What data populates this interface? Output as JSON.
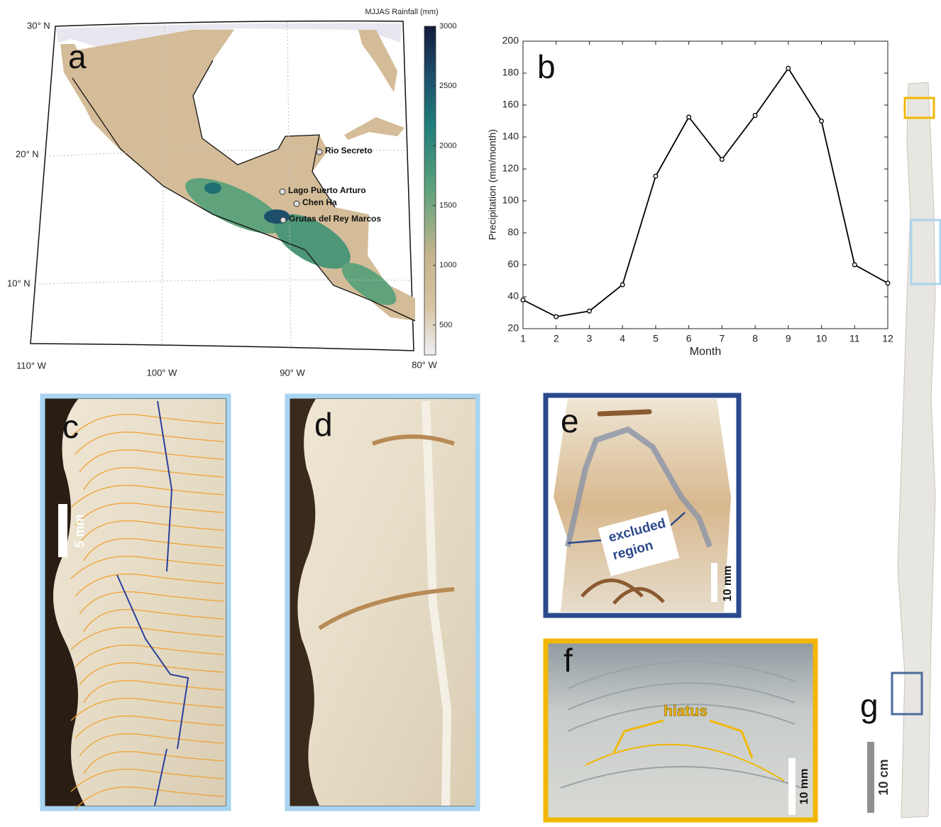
{
  "chart_data": {
    "type": "line",
    "panel_label": "b",
    "xlabel": "Month",
    "ylabel": "Precipitation (mm/month)",
    "x": [
      1,
      2,
      3,
      4,
      5,
      6,
      7,
      8,
      9,
      10,
      11,
      12
    ],
    "series": [
      {
        "color": "#000000",
        "values": [
          38,
          27.5,
          31,
          47.5,
          115.5,
          152.5,
          126,
          153.5,
          183,
          150,
          60,
          48.5
        ]
      }
    ],
    "xlim": [
      1,
      12
    ],
    "ylim": [
      20,
      200
    ],
    "xticks": [
      1,
      2,
      3,
      4,
      5,
      6,
      7,
      8,
      9,
      10,
      11,
      12
    ],
    "yticks": [
      20,
      40,
      60,
      80,
      100,
      120,
      140,
      160,
      180,
      200
    ]
  },
  "map": {
    "panel_label": "a",
    "colorbar_title": "MJJAS Rainfall (mm)",
    "colorbar_lim": [
      250,
      3000
    ],
    "colorbar_ticks": [
      500,
      1000,
      1500,
      2000,
      2500,
      3000
    ],
    "lat_labels": [
      "30° N",
      "20° N",
      "10° N"
    ],
    "lon_labels": [
      "110° W",
      "100° W",
      "90° W",
      "80° W"
    ],
    "sites": [
      "Rio Secreto",
      "Lago Puerto Arturo",
      "Chen Ha",
      "Grutas del Rey Marcos"
    ]
  },
  "panels": {
    "c": {
      "label": "c",
      "scale": "5 mm"
    },
    "d": {
      "label": "d"
    },
    "e": {
      "label": "e",
      "annotation": [
        "excluded",
        "region"
      ],
      "scale": "10 mm"
    },
    "f": {
      "label": "f",
      "annotation": "hiatus",
      "scale": "10 mm"
    },
    "g": {
      "label": "g",
      "scale": "10 cm"
    }
  }
}
